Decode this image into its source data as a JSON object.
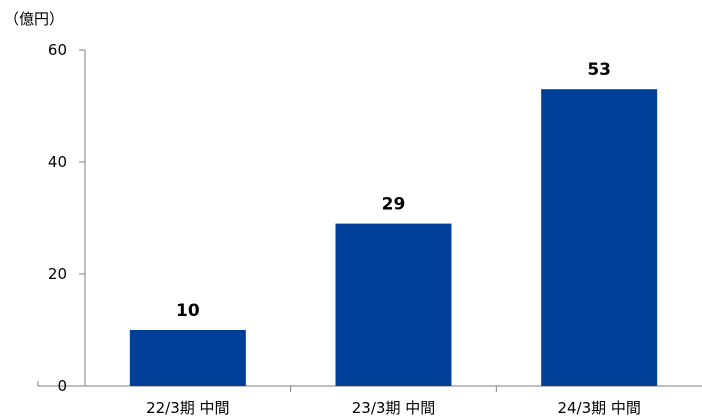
{
  "chart_data": {
    "type": "bar",
    "unit_label": "（億円）",
    "categories": [
      "22/3期 中間",
      "23/3期 中間",
      "24/3期 中間"
    ],
    "values": [
      10,
      29,
      53
    ],
    "data_labels": [
      "10",
      "29",
      "53"
    ],
    "ylim": [
      0,
      60
    ],
    "yticks": [
      0,
      20,
      40,
      60
    ],
    "ytick_labels": [
      "0",
      "20",
      "40",
      "60"
    ],
    "bar_color": "#004098",
    "axis_color": "#7f7f7f",
    "grid": false,
    "legend": "none"
  }
}
